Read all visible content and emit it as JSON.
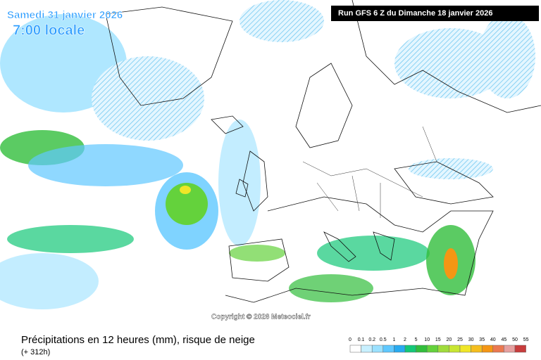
{
  "header": {
    "date": "Samedi 31 janvier 2026",
    "time": "7:00 locale",
    "run": "Run GFS 6 Z du Dimanche 18 janvier 2026"
  },
  "map": {
    "copyright": "Copyright © 2026 Meteociel.fr"
  },
  "footer": {
    "title": "Précipitations en 12 heures (mm), risque de neige",
    "lead": "(+ 312h)"
  },
  "legend": {
    "values": [
      0,
      0.1,
      0.2,
      0.5,
      1,
      2,
      5,
      10,
      15,
      20,
      25,
      30,
      35,
      40,
      45,
      50,
      55
    ],
    "colors": [
      "#ffffff",
      "#c8f0ff",
      "#9be1ff",
      "#5fc8ff",
      "#28aaf0",
      "#14c878",
      "#32be3c",
      "#64d23c",
      "#a0dc3c",
      "#c8e632",
      "#f0e628",
      "#f5be1e",
      "#f59614",
      "#eb7850",
      "#e6a0a0",
      "#c83c3c"
    ]
  }
}
